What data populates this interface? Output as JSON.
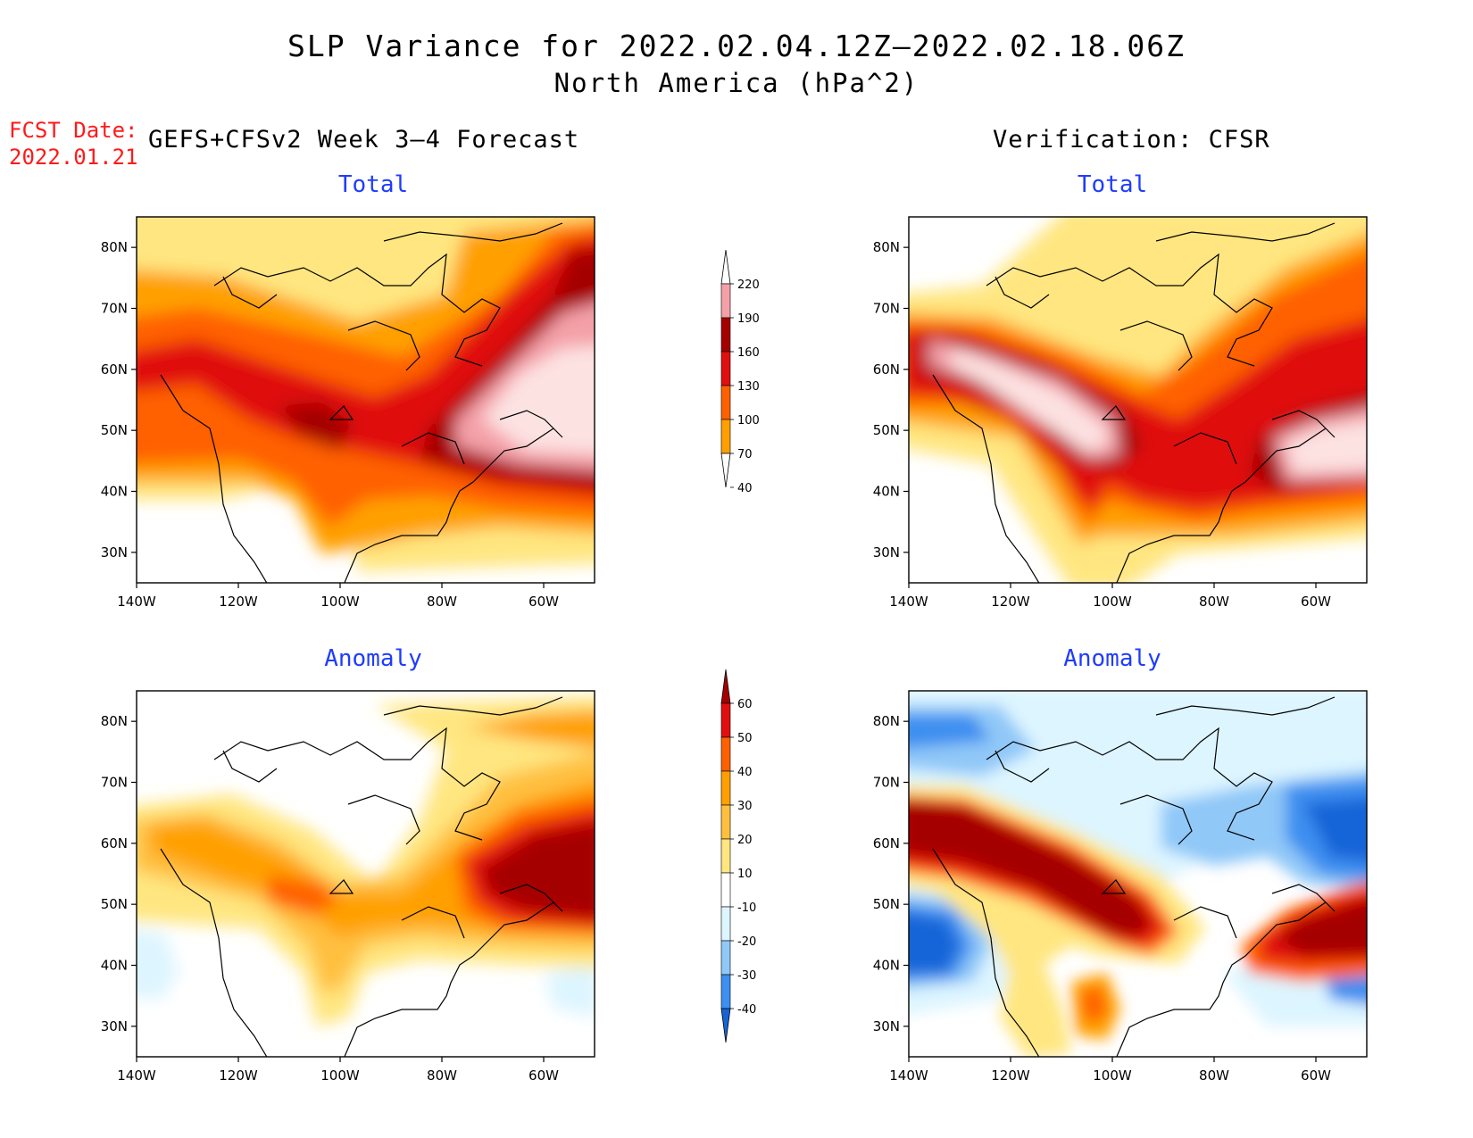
{
  "title": "SLP Variance for 2022.02.04.12Z–2022.02.18.06Z",
  "subtitle": "North America (hPa^2)",
  "fcst_label": "FCST Date:",
  "fcst_date": "2022.01.21",
  "left_header": "GEFS+CFSv2 Week 3–4 Forecast",
  "right_header": "Verification: CFSR",
  "panels": {
    "total_label": "Total",
    "anomaly_label": "Anomaly"
  },
  "axes": {
    "lat_ticks": [
      "80N",
      "70N",
      "60N",
      "50N",
      "40N",
      "30N"
    ],
    "lon_ticks": [
      "140W",
      "120W",
      "100W",
      "80W",
      "60W"
    ],
    "lat_range": [
      25,
      85
    ],
    "lon_range": [
      -140,
      -50
    ]
  },
  "colorbars": {
    "total": {
      "levels": [
        "40",
        "70",
        "100",
        "130",
        "160",
        "190",
        "220"
      ],
      "colors": [
        "#ffe680",
        "#ffa000",
        "#ff6000",
        "#e01010",
        "#a50000",
        "#f4a0a8",
        "#fde2e2"
      ]
    },
    "anomaly": {
      "levels": [
        "-40",
        "-30",
        "-20",
        "-10",
        "10",
        "20",
        "30",
        "40",
        "50",
        "60"
      ],
      "colors": [
        "#1565d8",
        "#3d8ff0",
        "#90c8f8",
        "#ddf5ff",
        "#ffffff",
        "#ffe680",
        "#ffc040",
        "#ffa000",
        "#ff6000",
        "#e01010",
        "#a50000"
      ]
    }
  }
}
